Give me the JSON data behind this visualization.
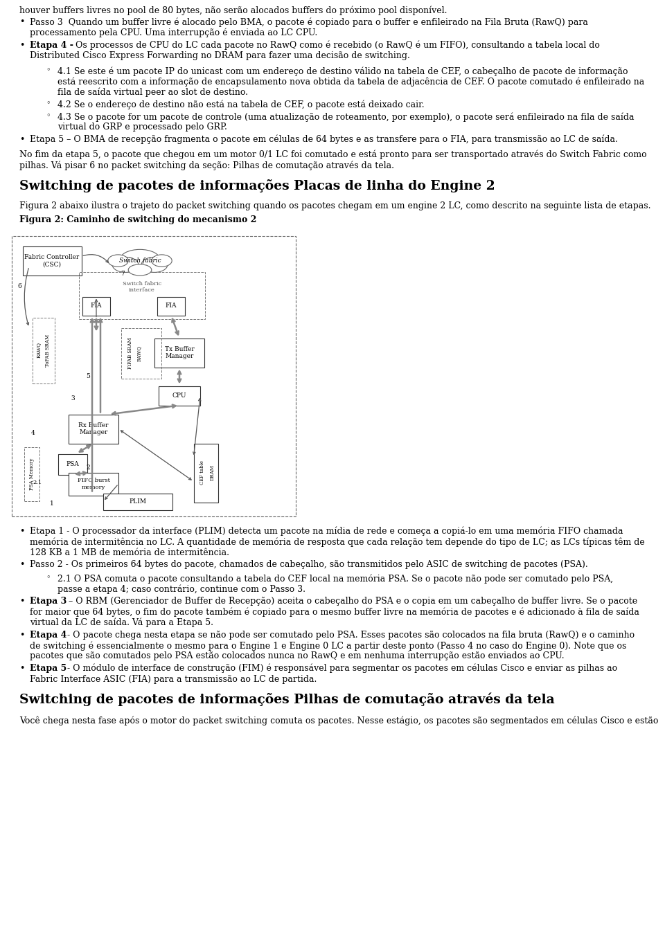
{
  "background_color": "#ffffff",
  "page_width": 9.6,
  "page_height": 13.68,
  "text_color": "#000000",
  "title1": "Switching de pacotes de informações Placas de linha do Engine 2",
  "title2": "Switching de pacotes de informações Pilhas de comutação através da tela",
  "fig2_caption": "Figura 2: Caminho de switching do mecanismo 2",
  "body_fontsize": 9.0,
  "title_fontsize": 13.5,
  "caption_fontsize": 9.0,
  "fig2_subtitle": "Figura 2 abaixo ilustra o trajeto do packet switching quando os pacotes chegam em um engine 2 LC, como descrito na seguinte lista de etapas.",
  "final_para": "Você chega nesta fase após o motor do packet switching comuta os pacotes. Nesse estágio, os pacotes são segmentados em células Cisco e estão"
}
